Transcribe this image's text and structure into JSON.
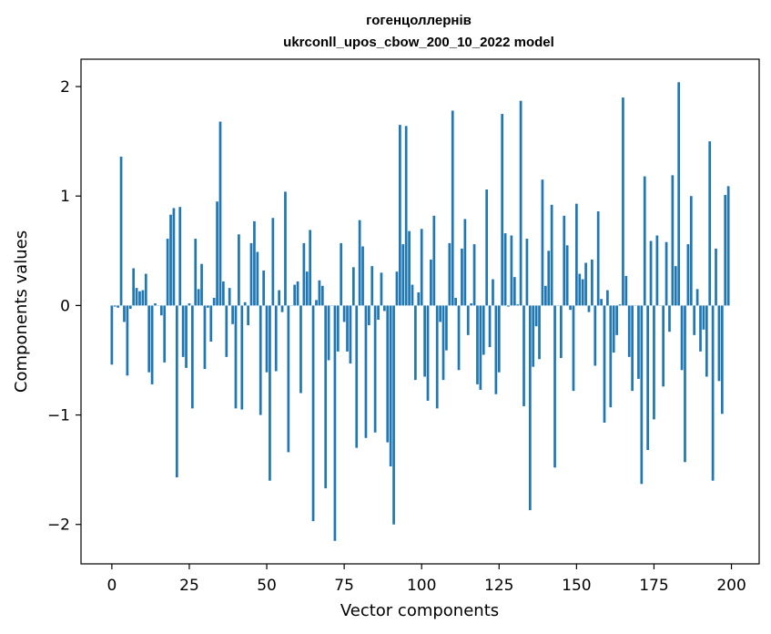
{
  "chart_data": {
    "type": "bar",
    "title": "гогенцоллернів",
    "subtitle": "ukrconll_upos_cbow_200_10_2022 model",
    "xlabel": "Vector components",
    "ylabel": "Components values",
    "xlim": [
      -9.95,
      208.95
    ],
    "ylim": [
      -2.36,
      2.25
    ],
    "xticks": [
      0,
      25,
      50,
      75,
      100,
      125,
      150,
      175,
      200
    ],
    "xtick_labels": [
      "0",
      "25",
      "50",
      "75",
      "100",
      "125",
      "150",
      "175",
      "200"
    ],
    "yticks": [
      -2,
      -1,
      0,
      1,
      2
    ],
    "ytick_labels": [
      "−2",
      "−1",
      "0",
      "1",
      "2"
    ],
    "grid": false,
    "color": "#1f77b4",
    "x": [
      0,
      1,
      2,
      3,
      4,
      5,
      6,
      7,
      8,
      9,
      10,
      11,
      12,
      13,
      14,
      15,
      16,
      17,
      18,
      19,
      20,
      21,
      22,
      23,
      24,
      25,
      26,
      27,
      28,
      29,
      30,
      31,
      32,
      33,
      34,
      35,
      36,
      37,
      38,
      39,
      40,
      41,
      42,
      43,
      44,
      45,
      46,
      47,
      48,
      49,
      50,
      51,
      52,
      53,
      54,
      55,
      56,
      57,
      58,
      59,
      60,
      61,
      62,
      63,
      64,
      65,
      66,
      67,
      68,
      69,
      70,
      71,
      72,
      73,
      74,
      75,
      76,
      77,
      78,
      79,
      80,
      81,
      82,
      83,
      84,
      85,
      86,
      87,
      88,
      89,
      90,
      91,
      92,
      93,
      94,
      95,
      96,
      97,
      98,
      99,
      100,
      101,
      102,
      103,
      104,
      105,
      106,
      107,
      108,
      109,
      110,
      111,
      112,
      113,
      114,
      115,
      116,
      117,
      118,
      119,
      120,
      121,
      122,
      123,
      124,
      125,
      126,
      127,
      128,
      129,
      130,
      131,
      132,
      133,
      134,
      135,
      136,
      137,
      138,
      139,
      140,
      141,
      142,
      143,
      144,
      145,
      146,
      147,
      148,
      149,
      150,
      151,
      152,
      153,
      154,
      155,
      156,
      157,
      158,
      159,
      160,
      161,
      162,
      163,
      164,
      165,
      166,
      167,
      168,
      169,
      170,
      171,
      172,
      173,
      174,
      175,
      176,
      177,
      178,
      179,
      180,
      181,
      182,
      183,
      184,
      185,
      186,
      187,
      188,
      189,
      190,
      191,
      192,
      193,
      194,
      195,
      196,
      197,
      198,
      199
    ],
    "values": [
      -0.54,
      -0.01,
      -0.02,
      1.36,
      -0.15,
      -0.64,
      -0.03,
      0.34,
      0.16,
      0.13,
      0.14,
      0.29,
      -0.61,
      -0.72,
      0.02,
      0.0,
      -0.09,
      -0.52,
      0.61,
      0.83,
      0.89,
      -1.57,
      0.9,
      -0.47,
      -0.57,
      0.02,
      -0.94,
      0.61,
      0.15,
      0.38,
      -0.58,
      -0.02,
      -0.33,
      0.07,
      0.95,
      1.68,
      0.22,
      -0.47,
      0.16,
      -0.17,
      -0.94,
      0.65,
      -0.95,
      0.03,
      -0.18,
      0.57,
      0.77,
      0.49,
      -1.0,
      0.32,
      -0.61,
      -1.6,
      0.8,
      -0.6,
      0.14,
      -0.06,
      1.04,
      -1.34,
      0.0,
      0.19,
      0.22,
      -0.8,
      0.57,
      0.31,
      0.69,
      -1.97,
      0.05,
      0.23,
      0.18,
      -1.67,
      -0.5,
      0.0,
      -2.15,
      -0.42,
      0.57,
      -0.15,
      -0.42,
      -0.53,
      0.35,
      -1.3,
      0.78,
      0.54,
      -1.21,
      -0.18,
      0.36,
      -1.16,
      -0.13,
      0.3,
      -0.05,
      -1.25,
      -1.47,
      -2.0,
      0.31,
      1.65,
      0.56,
      1.64,
      0.68,
      0.19,
      -0.68,
      0.12,
      0.7,
      -0.65,
      -0.87,
      0.42,
      0.82,
      -0.94,
      -0.15,
      -0.68,
      -0.41,
      0.57,
      1.78,
      0.07,
      -0.59,
      0.52,
      0.79,
      -0.27,
      0.02,
      0.56,
      -0.72,
      -0.77,
      -0.45,
      1.06,
      -0.38,
      0.24,
      -0.81,
      -0.61,
      1.75,
      0.66,
      -0.01,
      0.64,
      0.26,
      0.01,
      1.87,
      -0.92,
      0.61,
      -1.87,
      -0.56,
      -0.19,
      -0.49,
      1.15,
      0.18,
      0.5,
      0.92,
      -1.48,
      0.0,
      -0.48,
      0.82,
      0.55,
      -0.04,
      -0.78,
      0.93,
      0.29,
      0.24,
      0.39,
      -0.06,
      0.42,
      -0.55,
      0.86,
      0.06,
      -1.07,
      0.14,
      -0.93,
      -0.43,
      -0.27,
      0.01,
      1.9,
      0.27,
      -0.47,
      -0.78,
      0.0,
      -0.67,
      -1.63,
      1.18,
      -1.32,
      0.59,
      -1.04,
      0.64,
      0.0,
      -0.74,
      0.58,
      -0.24,
      1.19,
      0.36,
      2.04,
      -0.59,
      -1.43,
      0.56,
      1.0,
      -0.27,
      0.15,
      -0.42,
      -0.22,
      -0.65,
      1.5,
      -1.6,
      0.52,
      -0.69,
      -0.99,
      1.01,
      1.09
    ]
  }
}
